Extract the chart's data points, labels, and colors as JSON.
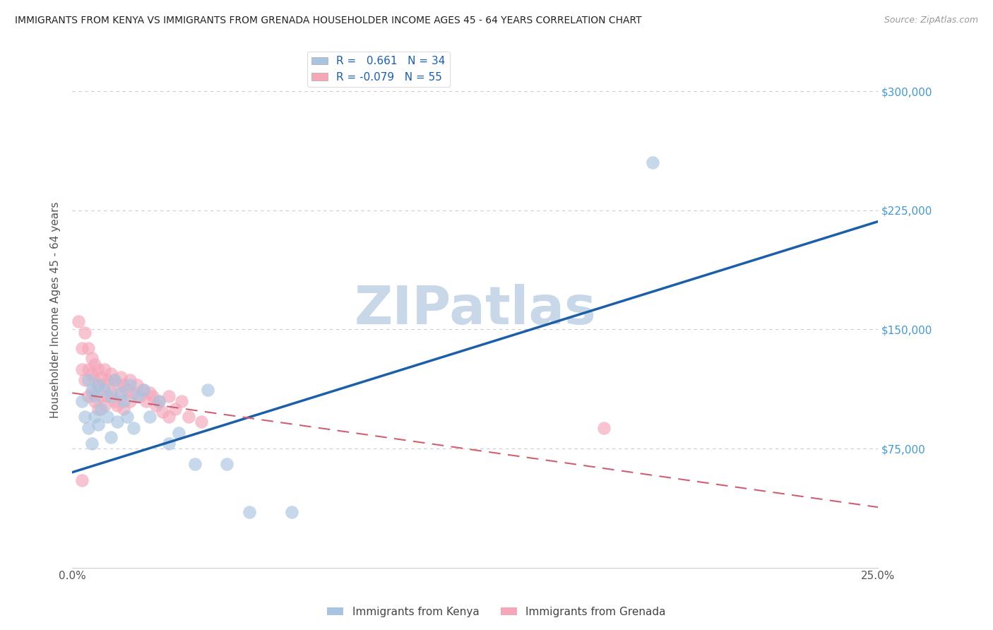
{
  "title": "IMMIGRANTS FROM KENYA VS IMMIGRANTS FROM GRENADA HOUSEHOLDER INCOME AGES 45 - 64 YEARS CORRELATION CHART",
  "source": "Source: ZipAtlas.com",
  "ylabel": "Householder Income Ages 45 - 64 years",
  "xlim": [
    0.0,
    0.25
  ],
  "ylim": [
    0,
    325000
  ],
  "xticks": [
    0.0,
    0.05,
    0.1,
    0.15,
    0.2,
    0.25
  ],
  "xticklabels": [
    "0.0%",
    "",
    "",
    "",
    "",
    "25.0%"
  ],
  "ytick_positions": [
    75000,
    150000,
    225000,
    300000
  ],
  "ytick_labels": [
    "$75,000",
    "$150,000",
    "$225,000",
    "$300,000"
  ],
  "kenya_color": "#a8c4e0",
  "grenada_color": "#f4a7b9",
  "kenya_line_color": "#1a5fa8",
  "grenada_line_color": "#d06070",
  "kenya_R": 0.661,
  "kenya_N": 34,
  "grenada_R": -0.079,
  "grenada_N": 55,
  "kenya_line_x0": 0.0,
  "kenya_line_y0": 60000,
  "kenya_line_x1": 0.25,
  "kenya_line_y1": 218000,
  "grenada_line_x0": 0.0,
  "grenada_line_y0": 110000,
  "grenada_line_x1": 0.25,
  "grenada_line_y1": 38000,
  "kenya_scatter_x": [
    0.003,
    0.004,
    0.005,
    0.005,
    0.006,
    0.006,
    0.007,
    0.007,
    0.008,
    0.008,
    0.009,
    0.01,
    0.011,
    0.012,
    0.012,
    0.013,
    0.014,
    0.015,
    0.016,
    0.017,
    0.018,
    0.019,
    0.02,
    0.022,
    0.024,
    0.027,
    0.03,
    0.033,
    0.038,
    0.042,
    0.048,
    0.055,
    0.18,
    0.068
  ],
  "kenya_scatter_y": [
    105000,
    95000,
    118000,
    88000,
    112000,
    78000,
    108000,
    95000,
    115000,
    90000,
    100000,
    112000,
    95000,
    108000,
    82000,
    118000,
    92000,
    110000,
    105000,
    95000,
    115000,
    88000,
    108000,
    112000,
    95000,
    105000,
    78000,
    85000,
    65000,
    112000,
    65000,
    35000,
    255000,
    35000
  ],
  "grenada_scatter_x": [
    0.002,
    0.003,
    0.003,
    0.004,
    0.004,
    0.005,
    0.005,
    0.005,
    0.006,
    0.006,
    0.006,
    0.007,
    0.007,
    0.007,
    0.008,
    0.008,
    0.008,
    0.009,
    0.009,
    0.01,
    0.01,
    0.01,
    0.011,
    0.011,
    0.012,
    0.012,
    0.013,
    0.013,
    0.014,
    0.014,
    0.015,
    0.015,
    0.016,
    0.016,
    0.017,
    0.018,
    0.018,
    0.019,
    0.02,
    0.021,
    0.022,
    0.023,
    0.024,
    0.025,
    0.026,
    0.027,
    0.028,
    0.03,
    0.03,
    0.032,
    0.034,
    0.036,
    0.04,
    0.003,
    0.165
  ],
  "grenada_scatter_y": [
    155000,
    138000,
    125000,
    148000,
    118000,
    138000,
    125000,
    108000,
    132000,
    122000,
    110000,
    128000,
    118000,
    105000,
    125000,
    115000,
    100000,
    120000,
    108000,
    125000,
    115000,
    102000,
    118000,
    108000,
    122000,
    110000,
    118000,
    105000,
    115000,
    102000,
    120000,
    108000,
    115000,
    100000,
    112000,
    118000,
    105000,
    110000,
    115000,
    108000,
    112000,
    105000,
    110000,
    108000,
    102000,
    105000,
    98000,
    108000,
    95000,
    100000,
    105000,
    95000,
    92000,
    55000,
    88000
  ],
  "watermark": "ZIPatlas",
  "watermark_color": "#c8d8e8",
  "background_color": "#ffffff",
  "grid_color": "#cccccc"
}
